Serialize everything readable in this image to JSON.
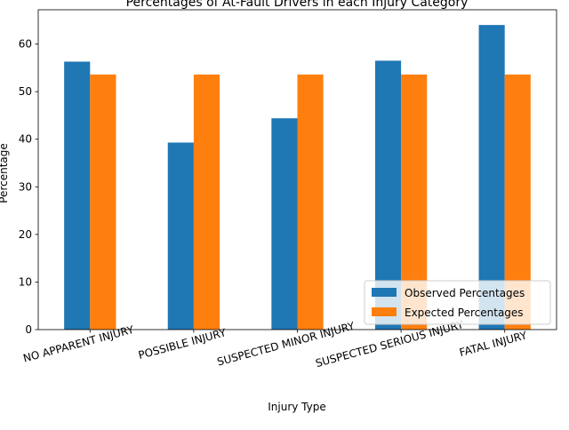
{
  "chart_data": {
    "type": "bar",
    "title": "Percentages of At-Fault Drivers in each Injury Category",
    "xlabel": "Injury Type",
    "ylabel": "Percentage",
    "categories": [
      "NO APPARENT INJURY",
      "POSSIBLE INJURY",
      "SUSPECTED MINOR INJURY",
      "SUSPECTED SERIOUS INJURY",
      "FATAL INJURY"
    ],
    "series": [
      {
        "name": "Observed Percentages",
        "color": "#1f77b4",
        "values": [
          56.3,
          39.3,
          44.4,
          56.5,
          64.0
        ]
      },
      {
        "name": "Expected Percentages",
        "color": "#ff7f0e",
        "values": [
          53.6,
          53.6,
          53.6,
          53.6,
          53.6
        ]
      }
    ],
    "ylim": [
      0,
      67.2
    ],
    "yticks": [
      "0",
      "10",
      "20",
      "30",
      "40",
      "50",
      "60"
    ],
    "grid": false,
    "legend_position": "bottom-right",
    "tick_label_rotation": "rotated"
  }
}
